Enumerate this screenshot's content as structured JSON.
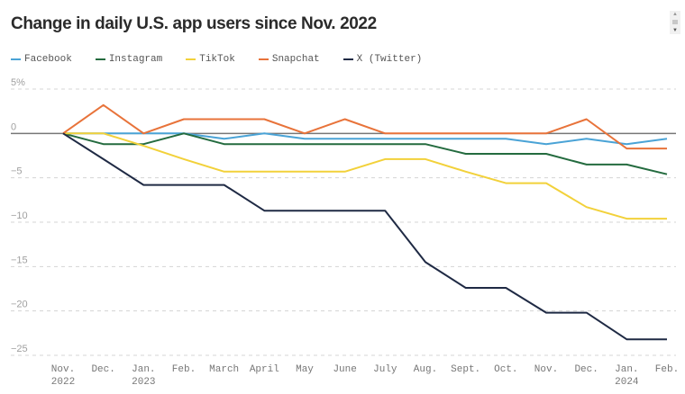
{
  "chart_data": {
    "type": "line",
    "title": "Change in daily U.S. app users since Nov. 2022",
    "xlabel": "",
    "ylabel": "",
    "ylim": [
      -25,
      5
    ],
    "yticks": [
      5,
      0,
      -5,
      -10,
      -15,
      -20,
      -25
    ],
    "ytick_labels": [
      "5%",
      "0",
      "−5",
      "−10",
      "−15",
      "−20",
      "−25"
    ],
    "grid": true,
    "legend_position": "top-left",
    "categories": [
      [
        "Nov.",
        "2022"
      ],
      [
        "Dec.",
        ""
      ],
      [
        "Jan.",
        "2023"
      ],
      [
        "Feb.",
        ""
      ],
      [
        "March",
        ""
      ],
      [
        "April",
        ""
      ],
      [
        "May",
        ""
      ],
      [
        "June",
        ""
      ],
      [
        "July",
        ""
      ],
      [
        "Aug.",
        ""
      ],
      [
        "Sept.",
        ""
      ],
      [
        "Oct.",
        ""
      ],
      [
        "Nov.",
        ""
      ],
      [
        "Dec.",
        ""
      ],
      [
        "Jan.",
        "2024"
      ],
      [
        "Feb.",
        ""
      ]
    ],
    "series": [
      {
        "name": "Facebook",
        "color": "#4aa3d6",
        "values": [
          0,
          0,
          0,
          0,
          -0.6,
          0,
          -0.6,
          -0.6,
          -0.6,
          -0.6,
          -0.6,
          -0.6,
          -1.2,
          -0.6,
          -1.2,
          -0.6
        ]
      },
      {
        "name": "Instagram",
        "color": "#246b3f",
        "values": [
          0,
          -1.2,
          -1.2,
          0,
          -1.2,
          -1.2,
          -1.2,
          -1.2,
          -1.2,
          -1.2,
          -2.3,
          -2.3,
          -2.3,
          -3.5,
          -3.5,
          -4.6
        ]
      },
      {
        "name": "TikTok",
        "color": "#f2d13a",
        "values": [
          0,
          0,
          -1.4,
          -2.9,
          -4.3,
          -4.3,
          -4.3,
          -4.3,
          -2.9,
          -2.9,
          -4.3,
          -5.6,
          -5.6,
          -8.3,
          -9.6,
          -9.6
        ]
      },
      {
        "name": "Snapchat",
        "color": "#e8733a",
        "values": [
          0,
          3.2,
          0,
          1.6,
          1.6,
          1.6,
          0,
          1.6,
          0,
          0,
          0,
          0,
          0,
          1.6,
          -1.7,
          -1.7
        ]
      },
      {
        "name": "X (Twitter)",
        "color": "#1f2a44",
        "values": [
          0,
          -2.9,
          -5.8,
          -5.8,
          -5.8,
          -8.7,
          -8.7,
          -8.7,
          -8.7,
          -14.5,
          -17.4,
          -17.4,
          -20.2,
          -20.2,
          -23.2,
          -23.2
        ]
      }
    ]
  },
  "legend": [
    {
      "label": "Facebook",
      "color": "#4aa3d6"
    },
    {
      "label": "Instagram",
      "color": "#246b3f"
    },
    {
      "label": "TikTok",
      "color": "#f2d13a"
    },
    {
      "label": "Snapchat",
      "color": "#e8733a"
    },
    {
      "label": "X (Twitter)",
      "color": "#1f2a44"
    }
  ],
  "scrollbar": {
    "up": "▲",
    "down": "▼"
  }
}
